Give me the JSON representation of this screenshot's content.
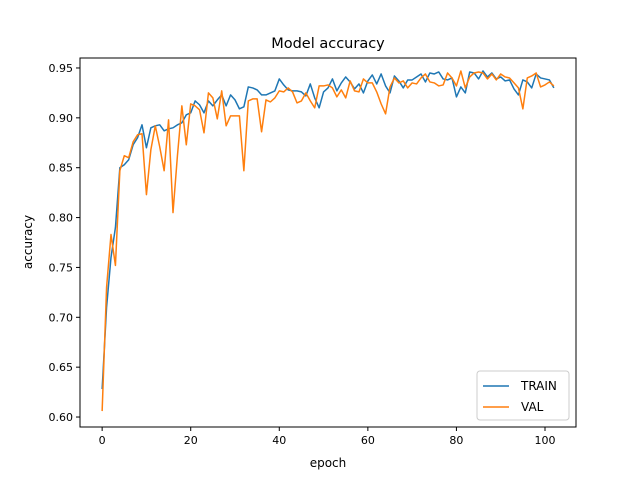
{
  "chart_data": {
    "type": "line",
    "title": "Model accuracy",
    "xlabel": "epoch",
    "ylabel": "accuracy",
    "xlim": [
      -5,
      107
    ],
    "ylim": [
      0.59,
      0.96
    ],
    "xticks": [
      0,
      20,
      40,
      60,
      80,
      100
    ],
    "yticks": [
      0.6,
      0.65,
      0.7,
      0.75,
      0.8,
      0.85,
      0.9,
      0.95
    ],
    "grid": false,
    "legend_position": "lower right",
    "series": [
      {
        "name": "TRAIN",
        "color": "#1f77b4",
        "values": [
          0.628,
          0.71,
          0.76,
          0.79,
          0.85,
          0.853,
          0.858,
          0.873,
          0.88,
          0.893,
          0.87,
          0.89,
          0.892,
          0.893,
          0.887,
          0.889,
          0.89,
          0.893,
          0.895,
          0.903,
          0.905,
          0.917,
          0.913,
          0.905,
          0.917,
          0.912,
          0.918,
          0.923,
          0.912,
          0.923,
          0.918,
          0.909,
          0.911,
          0.931,
          0.93,
          0.928,
          0.923,
          0.923,
          0.925,
          0.927,
          0.939,
          0.933,
          0.928,
          0.927,
          0.927,
          0.926,
          0.922,
          0.934,
          0.92,
          0.91,
          0.926,
          0.93,
          0.939,
          0.927,
          0.935,
          0.941,
          0.936,
          0.929,
          0.934,
          0.925,
          0.937,
          0.943,
          0.934,
          0.944,
          0.932,
          0.925,
          0.942,
          0.937,
          0.93,
          0.938,
          0.938,
          0.941,
          0.944,
          0.936,
          0.945,
          0.944,
          0.946,
          0.939,
          0.938,
          0.94,
          0.921,
          0.931,
          0.925,
          0.946,
          0.945,
          0.939,
          0.947,
          0.941,
          0.945,
          0.939,
          0.941,
          0.937,
          0.938,
          0.929,
          0.923,
          0.938,
          0.936,
          0.93,
          0.944,
          0.94,
          0.939,
          0.938,
          0.93
        ]
      },
      {
        "name": "VAL",
        "color": "#ff7f0e",
        "values": [
          0.606,
          0.73,
          0.783,
          0.752,
          0.847,
          0.862,
          0.86,
          0.876,
          0.883,
          0.884,
          0.823,
          0.868,
          0.892,
          0.871,
          0.847,
          0.898,
          0.805,
          0.862,
          0.912,
          0.873,
          0.914,
          0.912,
          0.908,
          0.885,
          0.925,
          0.92,
          0.899,
          0.927,
          0.892,
          0.902,
          0.902,
          0.902,
          0.847,
          0.917,
          0.919,
          0.919,
          0.886,
          0.918,
          0.916,
          0.92,
          0.927,
          0.926,
          0.93,
          0.926,
          0.915,
          0.917,
          0.925,
          0.917,
          0.91,
          0.932,
          0.932,
          0.933,
          0.93,
          0.921,
          0.928,
          0.92,
          0.937,
          0.927,
          0.926,
          0.939,
          0.935,
          0.935,
          0.926,
          0.914,
          0.904,
          0.931,
          0.94,
          0.935,
          0.937,
          0.93,
          0.935,
          0.934,
          0.94,
          0.944,
          0.936,
          0.935,
          0.932,
          0.933,
          0.945,
          0.94,
          0.932,
          0.947,
          0.93,
          0.941,
          0.945,
          0.946,
          0.945,
          0.939,
          0.944,
          0.938,
          0.944,
          0.941,
          0.94,
          0.935,
          0.93,
          0.909,
          0.94,
          0.942,
          0.945,
          0.931,
          0.933,
          0.936,
          0.932
        ]
      }
    ]
  }
}
